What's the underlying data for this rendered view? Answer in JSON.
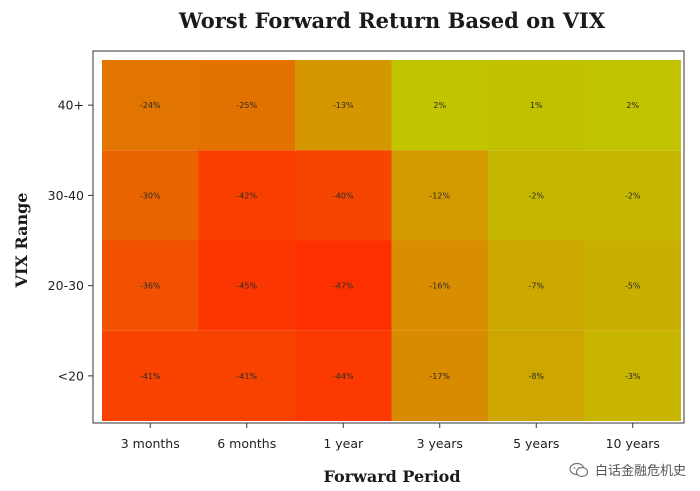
{
  "chart_data": {
    "type": "heatmap",
    "title": "Worst Forward Return Based on VIX",
    "xlabel": "Forward Period",
    "ylabel": "VIX Range",
    "x_categories": [
      "3 months",
      "6 months",
      "1 year",
      "3 years",
      "5 years",
      "10 years"
    ],
    "y_categories": [
      "40+",
      "30-40",
      "20-30",
      "<20"
    ],
    "values": [
      [
        -24,
        -25,
        -13,
        2,
        1,
        2
      ],
      [
        -30,
        -42,
        -40,
        -12,
        -2,
        -2
      ],
      [
        -36,
        -45,
        -47,
        -16,
        -7,
        -5
      ],
      [
        -41,
        -41,
        -44,
        -17,
        -8,
        -3
      ]
    ],
    "value_labels": [
      [
        "-24%",
        "-25%",
        "-13%",
        "2%",
        "1%",
        "2%"
      ],
      [
        "-30%",
        "-42%",
        "-40%",
        "-12%",
        "-2%",
        "-2%"
      ],
      [
        "-36%",
        "-45%",
        "-47%",
        "-16%",
        "-7%",
        "-5%"
      ],
      [
        "-41%",
        "-41%",
        "-44%",
        "-17%",
        "-8%",
        "-3%"
      ]
    ],
    "grid": false,
    "legend": "none"
  },
  "watermark": {
    "text": "白话金融危机史",
    "icon": "wechat-icon"
  }
}
